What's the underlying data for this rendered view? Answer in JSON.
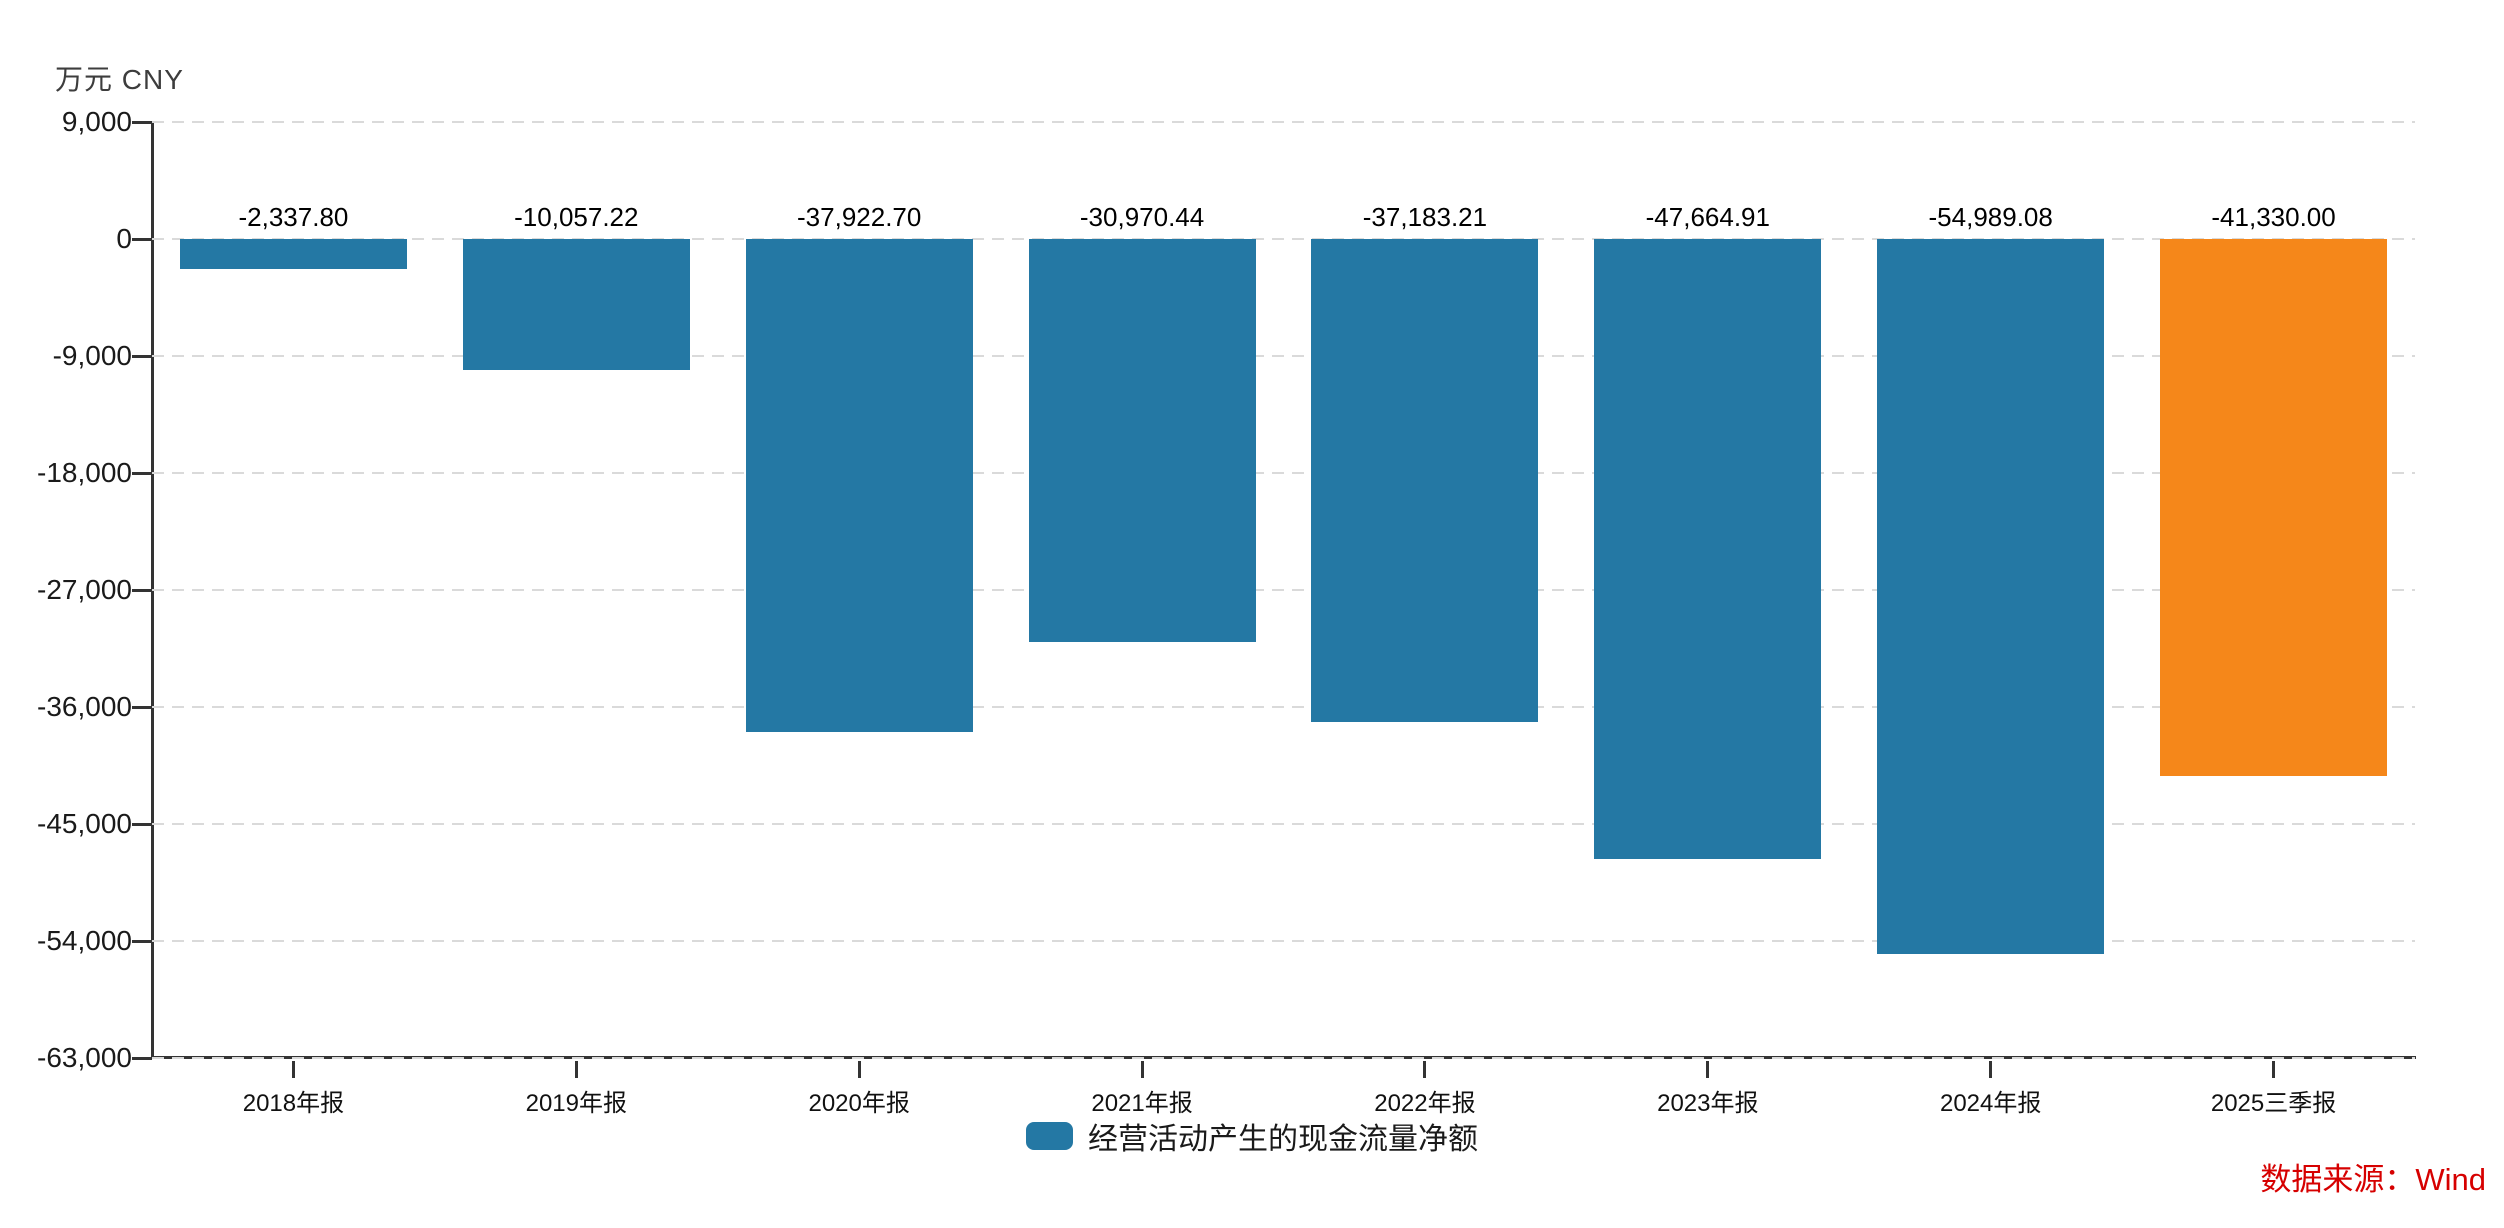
{
  "chart": {
    "axis_unit_label": "万元 CNY"
  },
  "legend": {
    "label": "经营活动产生的现金流量净额"
  },
  "source": {
    "label": "数据来源：Wind"
  },
  "chart_data": {
    "type": "bar",
    "title": "",
    "unit": "万元 CNY",
    "categories": [
      "2018年报",
      "2019年报",
      "2020年报",
      "2021年报",
      "2022年报",
      "2023年报",
      "2024年报",
      "2025三季报"
    ],
    "series": [
      {
        "name": "经营活动产生的现金流量净额",
        "values": [
          -2337.8,
          -10057.22,
          -37922.7,
          -30970.44,
          -37183.21,
          -47664.91,
          -54989.08,
          -41330.0
        ]
      }
    ],
    "value_labels": [
      "-2,337.80",
      "-10,057.22",
      "-37,922.70",
      "-30,970.44",
      "-37,183.21",
      "-47,664.91",
      "-54,989.08",
      "-41,330.00"
    ],
    "xlabel": "",
    "ylabel": "万元 CNY",
    "ylim": [
      -63000,
      9000
    ],
    "yticks": [
      9000,
      0,
      -9000,
      -18000,
      -27000,
      -36000,
      -45000,
      -54000,
      -63000
    ],
    "ytick_labels": [
      "9,000",
      "0",
      "-9,000",
      "-18,000",
      "-27,000",
      "-36,000",
      "-45,000",
      "-54,000",
      "-63,000"
    ],
    "grid": true,
    "grid_style": "dashed",
    "legend_position": "bottom",
    "highlight_index": 7,
    "colors": {
      "bar_default": "#2478A4",
      "bar_highlight": "#F5871A",
      "grid_line": "#DADADA",
      "axis_line": "#333333",
      "source_text": "#D60000"
    }
  }
}
